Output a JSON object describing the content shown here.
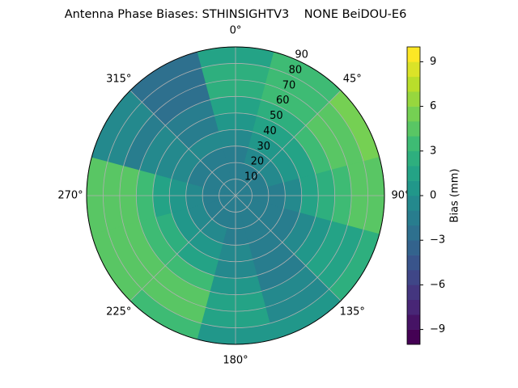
{
  "chart_data": {
    "type": "polar-contour",
    "title": "Antenna Phase Biases: STHINSIGHTV3    NONE BeiDOU-E6",
    "colorbar_label": "Bias (mm)",
    "colormap": "viridis",
    "theta": [
      0,
      30,
      60,
      90,
      120,
      150,
      180,
      210,
      240,
      270,
      300,
      330
    ],
    "r": [
      5,
      15,
      25,
      35,
      45,
      55,
      65,
      75,
      85
    ],
    "values": [
      [
        -1.5,
        -1.5,
        -1.5,
        -1.5,
        -1.5,
        -1.5,
        -1.5,
        -1.5,
        -1.5,
        -1.5,
        -1.5,
        -1.5
      ],
      [
        -1.5,
        -1.2,
        -1.5,
        -1.8,
        -1.5,
        -1.5,
        -1.5,
        -1.5,
        -1.2,
        -1.5,
        -1.8,
        -1.5
      ],
      [
        -1.2,
        -0.8,
        -1,
        -1.5,
        -1.8,
        -1.5,
        -1.2,
        -1,
        -0.5,
        -0.8,
        -1.5,
        -1.5
      ],
      [
        -0.5,
        0,
        0,
        -0.5,
        -1.5,
        -1.5,
        -1,
        0,
        0.5,
        0.5,
        -1,
        -1
      ],
      [
        0.5,
        1,
        1.5,
        1,
        -1,
        -1.5,
        -0.5,
        1.5,
        2,
        1.5,
        -1,
        -1.2
      ],
      [
        1.5,
        2,
        3,
        2.5,
        0,
        -1.5,
        0,
        3,
        3.5,
        3,
        -1,
        -1.5
      ],
      [
        2.5,
        3,
        4,
        3.5,
        1,
        -1,
        1,
        4,
        4,
        4,
        -1.5,
        -2.5
      ],
      [
        2,
        3.5,
        4.5,
        4,
        1.5,
        -0.5,
        1,
        4,
        4.5,
        4.5,
        -1,
        -3
      ],
      [
        1.5,
        3,
        5,
        4.5,
        2,
        0,
        0.5,
        3,
        4,
        4,
        -0.5,
        -3
      ]
    ],
    "rlim": [
      0,
      90
    ],
    "rticks": [
      10,
      20,
      30,
      40,
      50,
      60,
      70,
      80,
      90
    ],
    "thetaticks": [
      {
        "value": 0,
        "label": "0°"
      },
      {
        "value": 45,
        "label": "45°"
      },
      {
        "value": 90,
        "label": "90°"
      },
      {
        "value": 135,
        "label": "135°"
      },
      {
        "value": 180,
        "label": "180°"
      },
      {
        "value": 225,
        "label": "225°"
      },
      {
        "value": 270,
        "label": "270°"
      },
      {
        "value": 315,
        "label": "315°"
      }
    ],
    "clim": [
      -10,
      10
    ],
    "levels": [
      -10,
      -9,
      -8,
      -7,
      -6,
      -5,
      -4,
      -3,
      -2,
      -1,
      0,
      1,
      2,
      3,
      4,
      5,
      6,
      7,
      8,
      9,
      10
    ],
    "cticks": [
      {
        "value": -9,
        "label": "−9"
      },
      {
        "value": -6,
        "label": "−6"
      },
      {
        "value": -3,
        "label": "−3"
      },
      0,
      3,
      6,
      9
    ],
    "grid": true
  }
}
